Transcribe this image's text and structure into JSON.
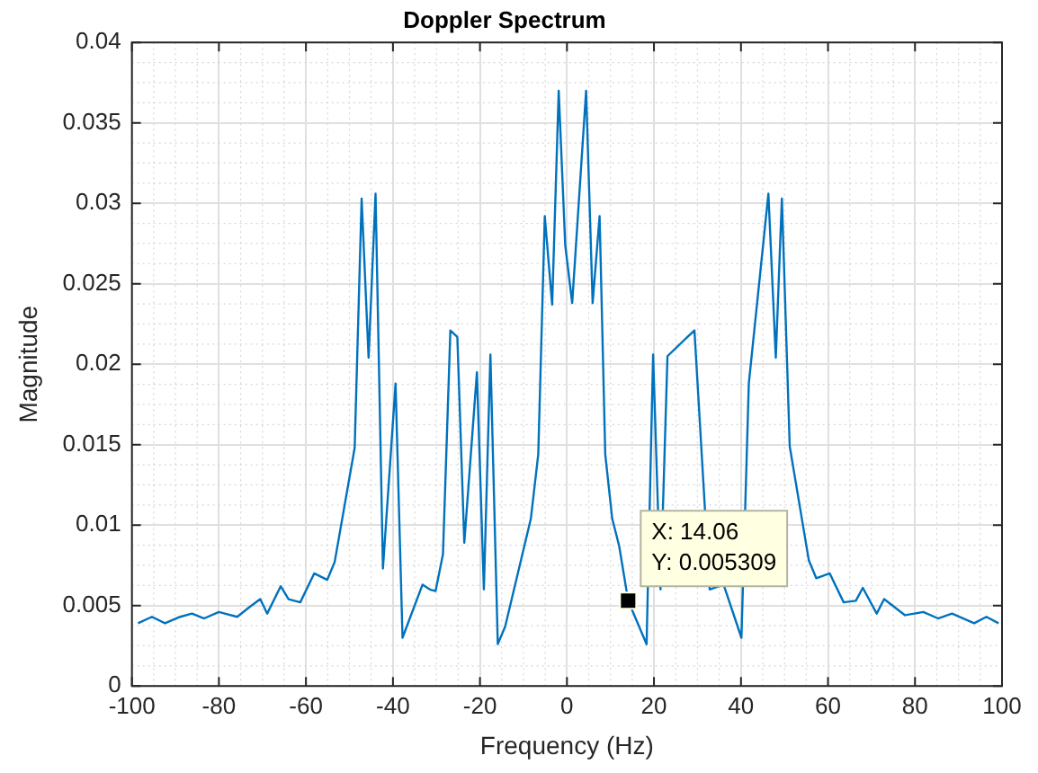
{
  "chart_data": {
    "type": "line",
    "title": "Doppler Spectrum",
    "xlabel": "Frequency (Hz)",
    "ylabel": "Magnitude",
    "x": [
      -98.6,
      -95.4,
      -92.4,
      -88.9,
      -86.2,
      -83.4,
      -80.0,
      -75.8,
      -73.0,
      -70.5,
      -68.9,
      -65.8,
      -64.0,
      -61.3,
      -58.1,
      -55.1,
      -53.4,
      -48.8,
      -47.2,
      -45.6,
      -44.0,
      -42.3,
      -39.4,
      -37.8,
      -33.2,
      -31.5,
      -30.2,
      -28.5,
      -26.8,
      -25.2,
      -23.6,
      -20.7,
      -19.1,
      -17.6,
      -15.9,
      -14.2,
      -8.3,
      -6.6,
      -5.1,
      -3.4,
      -1.9,
      -0.4,
      1.2,
      4.4,
      5.9,
      7.5,
      8.8,
      10.4,
      12.0,
      14.06,
      18.3,
      19.8,
      21.5,
      23.1,
      24.6,
      27.7,
      29.3,
      32.8,
      36.0,
      40.1,
      41.8,
      44.5,
      46.3,
      48.0,
      49.4,
      51.2,
      55.6,
      57.3,
      60.4,
      63.6,
      66.4,
      68.0,
      71.2,
      72.9,
      77.7,
      81.9,
      85.3,
      88.5,
      93.6,
      96.4,
      99.2
    ],
    "series": [
      {
        "color": "#0072bd",
        "values": [
          0.0039,
          0.0043,
          0.0039,
          0.0043,
          0.0045,
          0.0042,
          0.0046,
          0.0043,
          0.0049,
          0.0054,
          0.0045,
          0.0062,
          0.0054,
          0.0052,
          0.007,
          0.0066,
          0.0077,
          0.0148,
          0.0303,
          0.0204,
          0.0306,
          0.0073,
          0.0188,
          0.003,
          0.0063,
          0.006,
          0.0059,
          0.0082,
          0.0221,
          0.0217,
          0.0089,
          0.0195,
          0.006,
          0.0206,
          0.0026,
          0.0037,
          0.0104,
          0.0144,
          0.0292,
          0.0237,
          0.037,
          0.0274,
          0.0238,
          0.037,
          0.0238,
          0.0292,
          0.0144,
          0.0104,
          0.0087,
          0.005309,
          0.0026,
          0.0206,
          0.006,
          0.0205,
          null,
          0.0217,
          0.0221,
          0.006,
          0.0063,
          0.003,
          0.0188,
          null,
          0.0306,
          0.0204,
          0.0303,
          0.0149,
          0.0078,
          0.0067,
          0.007,
          0.0052,
          0.0053,
          0.0061,
          0.0045,
          0.0054,
          0.0044,
          0.0046,
          0.0042,
          0.0045,
          0.0039,
          0.0043,
          0.0039
        ]
      }
    ],
    "xlim": [
      -100,
      100
    ],
    "xticks": [
      -100,
      -80,
      -60,
      -40,
      -20,
      0,
      20,
      40,
      60,
      80,
      100
    ],
    "ylim": [
      0,
      0.04
    ],
    "yticks": [
      0,
      0.005,
      0.01,
      0.015,
      0.02,
      0.025,
      0.03,
      0.035,
      0.04
    ],
    "grid": true,
    "legend": false,
    "marker": "none",
    "line_style": "solid",
    "annotations": [
      {
        "text": "X: 14.06\nY: 0.005309",
        "x": 14.06,
        "y": 0.005309
      }
    ]
  }
}
